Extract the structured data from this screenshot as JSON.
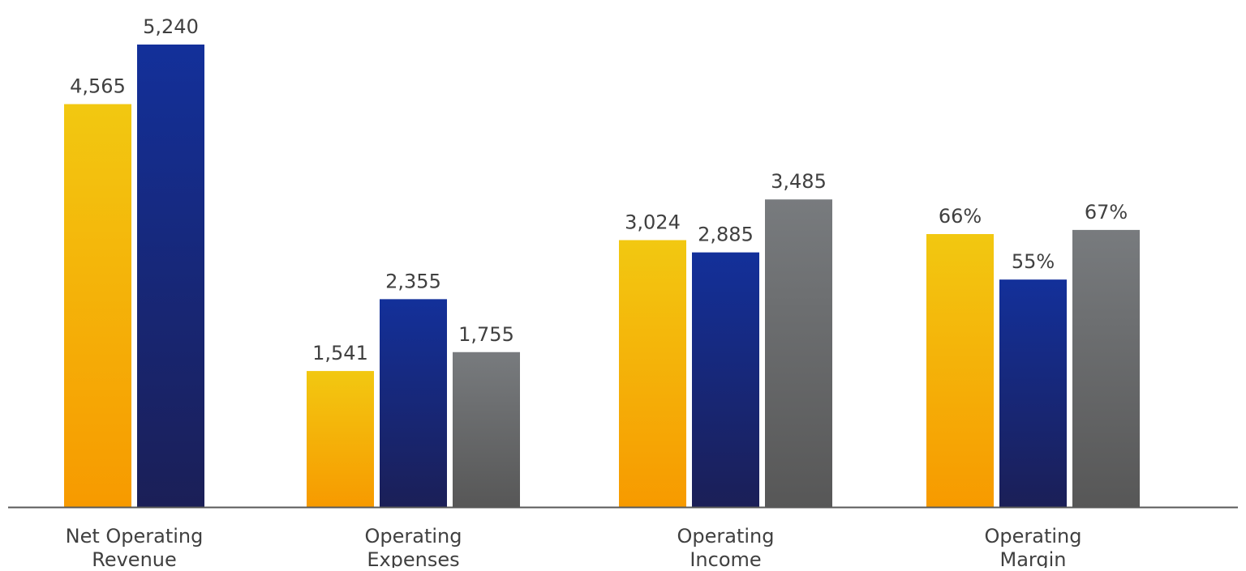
{
  "chart_data": {
    "type": "bar",
    "categories": [
      [
        "Net Operating",
        "Revenue"
      ],
      [
        "Operating",
        "Expenses"
      ],
      [
        "Operating",
        "Income"
      ],
      [
        "Operating",
        "Margin"
      ]
    ],
    "groups": [
      {
        "bars": [
          {
            "value": 4565,
            "label": "4,565",
            "series": 0
          },
          {
            "value": 5240,
            "label": "5,240",
            "series": 1
          }
        ]
      },
      {
        "bars": [
          {
            "value": 1541,
            "label": "1,541",
            "series": 0
          },
          {
            "value": 2355,
            "label": "2,355",
            "series": 1
          },
          {
            "value": 1755,
            "label": "1,755",
            "series": 2
          }
        ]
      },
      {
        "bars": [
          {
            "value": 3024,
            "label": "3,024",
            "series": 0
          },
          {
            "value": 2885,
            "label": "2,885",
            "series": 1
          },
          {
            "value": 3485,
            "label": "3,485",
            "series": 2
          }
        ]
      },
      {
        "bars": [
          {
            "value": 66,
            "label": "66%",
            "series": 0
          },
          {
            "value": 55,
            "label": "55%",
            "series": 1
          },
          {
            "value": 67,
            "label": "67%",
            "series": 2
          }
        ]
      }
    ],
    "series_colors": [
      {
        "top": "#F2C811",
        "bottom": "#F79A00"
      },
      {
        "top": "#13309A",
        "bottom": "#1B1F57"
      },
      {
        "top": "#787B7E",
        "bottom": "#575757"
      }
    ],
    "grid": false,
    "legend": "none",
    "axis_color": "#595959",
    "label_color": "#404040"
  }
}
